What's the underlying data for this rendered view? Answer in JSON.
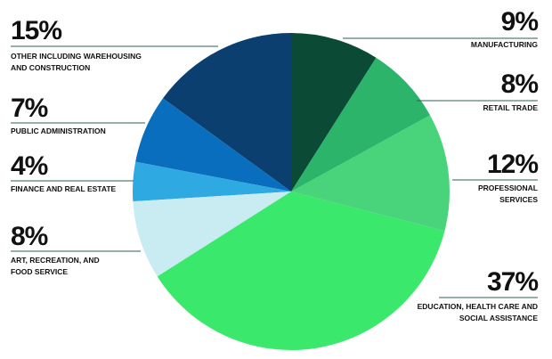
{
  "chart_data": {
    "type": "pie",
    "categories": [
      "MANUFACTURING",
      "RETAIL TRADE",
      "PROFESSIONAL SERVICES",
      "EDUCATION, HEALTH CARE AND SOCIAL ASSISTANCE",
      "ART, RECREATION, AND FOOD SERVICE",
      "FINANCE AND REAL ESTATE",
      "PUBLIC ADMINISTRATION",
      "OTHER INCLUDING WAREHOUSING AND CONSTRUCTION"
    ],
    "values": [
      9,
      8,
      12,
      37,
      8,
      4,
      7,
      15
    ],
    "value_labels": [
      "9%",
      "8%",
      "12%",
      "37%",
      "8%",
      "4%",
      "7%",
      "15%"
    ],
    "colors": [
      "#0b4a35",
      "#2bb46a",
      "#49d47c",
      "#3ae86c",
      "#c9ebf2",
      "#2fa9e1",
      "#0a6ebe",
      "#0a3f6f"
    ]
  }
}
